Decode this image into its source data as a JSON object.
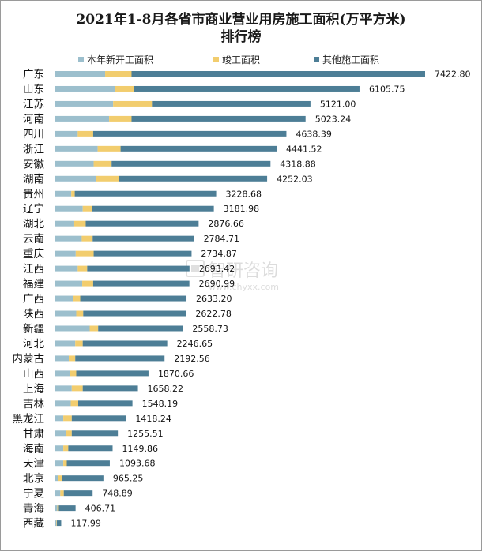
{
  "chart_data": {
    "type": "bar",
    "orientation": "horizontal",
    "stacked": true,
    "title_line1": "2021年1-8月各省市商业营业用房施工面积(万平方米)",
    "title_line2": "排行榜",
    "categories": [
      "广东",
      "山东",
      "江苏",
      "河南",
      "四川",
      "浙江",
      "安徽",
      "湖南",
      "贵州",
      "辽宁",
      "湖北",
      "云南",
      "重庆",
      "江西",
      "福建",
      "广西",
      "陕西",
      "新疆",
      "河北",
      "内蒙古",
      "山西",
      "上海",
      "吉林",
      "黑龙江",
      "甘肃",
      "海南",
      "天津",
      "北京",
      "宁夏",
      "青海",
      "西藏"
    ],
    "totals": [
      7422.8,
      6105.75,
      5121.0,
      5023.24,
      4638.39,
      4441.52,
      4318.88,
      4252.03,
      3228.68,
      3181.98,
      2876.66,
      2784.71,
      2734.87,
      2693.42,
      2690.99,
      2633.2,
      2622.78,
      2558.73,
      2246.65,
      2192.56,
      1870.66,
      1658.22,
      1548.19,
      1418.24,
      1255.51,
      1149.86,
      1093.68,
      965.25,
      748.89,
      406.71,
      117.99
    ],
    "total_labels": [
      "7422.80",
      "6105.75",
      "5121.00",
      "5023.24",
      "4638.39",
      "4441.52",
      "4318.88",
      "4252.03",
      "3228.68",
      "3181.98",
      "2876.66",
      "2784.71",
      "2734.87",
      "2693.42",
      "2690.99",
      "2633.20",
      "2622.78",
      "2558.73",
      "2246.65",
      "2192.56",
      "1870.66",
      "1658.22",
      "1548.19",
      "1418.24",
      "1255.51",
      "1149.86",
      "1093.68",
      "965.25",
      "748.89",
      "406.71",
      "117.99"
    ],
    "series": [
      {
        "name": "本年新开工面积",
        "color": "#9cbfcd",
        "values": [
          1000,
          1190,
          1160,
          1080,
          450,
          850,
          770,
          810,
          320,
          550,
          380,
          530,
          410,
          450,
          540,
          350,
          420,
          690,
          400,
          270,
          290,
          330,
          310,
          160,
          210,
          160,
          160,
          50,
          100,
          40,
          20
        ]
      },
      {
        "name": "竣工面积",
        "color": "#f2cd6e",
        "values": [
          530,
          390,
          780,
          450,
          310,
          460,
          360,
          460,
          70,
          190,
          230,
          220,
          360,
          190,
          220,
          150,
          140,
          170,
          150,
          130,
          130,
          220,
          150,
          170,
          120,
          100,
          70,
          80,
          70,
          30,
          10
        ]
      },
      {
        "name": "其他施工面积",
        "color": "#4d7e96",
        "values": [
          5892.8,
          4525.75,
          3181.0,
          3493.24,
          3878.39,
          3131.52,
          3188.88,
          2982.03,
          2838.68,
          2441.98,
          2266.66,
          2034.71,
          1964.87,
          2053.42,
          1930.99,
          2133.2,
          2062.78,
          1698.73,
          1696.65,
          1792.56,
          1450.66,
          1108.22,
          1088.19,
          1088.24,
          925.51,
          889.86,
          863.68,
          835.25,
          578.89,
          336.71,
          87.99
        ]
      }
    ],
    "x_range": [
      0,
      7422.8
    ]
  },
  "watermark": {
    "text": "智研咨询",
    "sub": "www.chyxx.com"
  }
}
